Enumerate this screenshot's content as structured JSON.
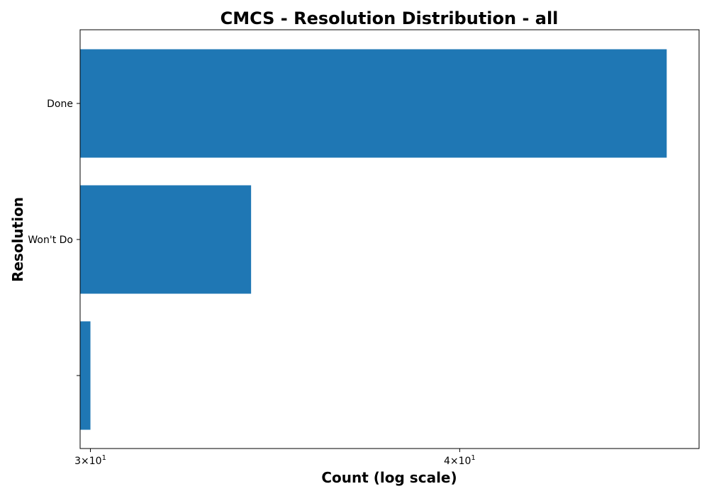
{
  "chart_data": {
    "type": "bar",
    "orientation": "horizontal",
    "title": "CMCS - Resolution Distribution - all",
    "xlabel": "Count (log scale)",
    "ylabel": "Resolution",
    "xscale": "log",
    "xlim": [
      29.76,
      48.2
    ],
    "categories": [
      "Done",
      "Won't Do",
      ""
    ],
    "values": [
      47,
      34,
      30
    ],
    "xticks": [
      {
        "value": 30,
        "mantissa": "3",
        "base": "10",
        "exponent": "1"
      },
      {
        "value": 40,
        "mantissa": "4",
        "base": "10",
        "exponent": "1"
      }
    ],
    "bar_color": "#1f77b4",
    "grid": false,
    "legend": "none"
  }
}
